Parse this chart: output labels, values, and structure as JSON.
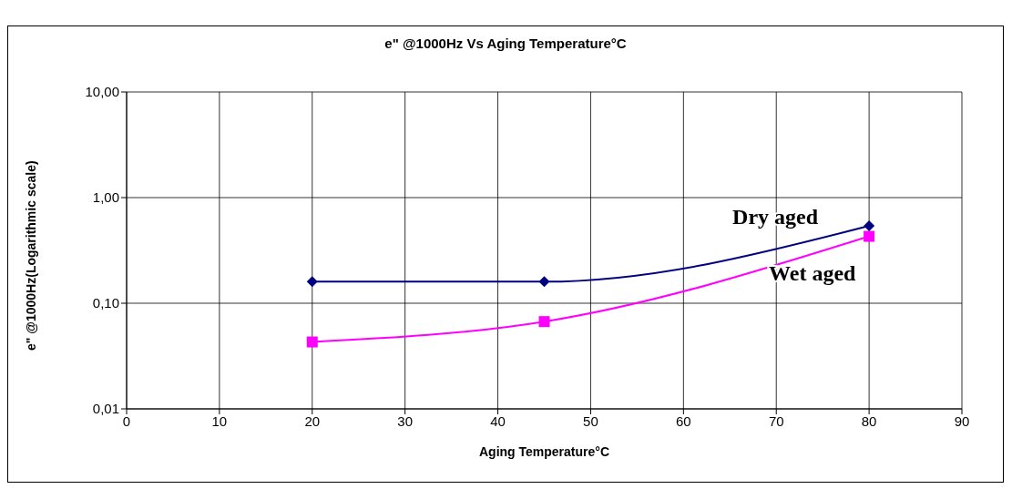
{
  "chart_data": {
    "type": "line",
    "title": "e\" @1000Hz Vs Aging Temperature°C",
    "xlabel": "Aging Temperature°C",
    "ylabel": "e\" @1000Hz(Logarithmic scale)",
    "x": [
      20,
      45,
      80
    ],
    "series": [
      {
        "name": "Dry aged",
        "color": "#000080",
        "marker": "diamond",
        "values": [
          0.16,
          0.16,
          0.54
        ]
      },
      {
        "name": "Wet aged",
        "color": "#ff00ff",
        "marker": "square",
        "values": [
          0.043,
          0.067,
          0.43
        ]
      }
    ],
    "xlim": [
      0,
      90
    ],
    "xticks": [
      0,
      10,
      20,
      30,
      40,
      50,
      60,
      70,
      80,
      90
    ],
    "ylim": [
      0.01,
      10
    ],
    "yticks": [
      {
        "value": 0.01,
        "label": "0,01"
      },
      {
        "value": 0.1,
        "label": "0,10"
      },
      {
        "value": 1,
        "label": "1,00"
      },
      {
        "value": 10,
        "label": "10,00"
      }
    ],
    "log": "y",
    "grid": true,
    "line_style": "solid"
  }
}
